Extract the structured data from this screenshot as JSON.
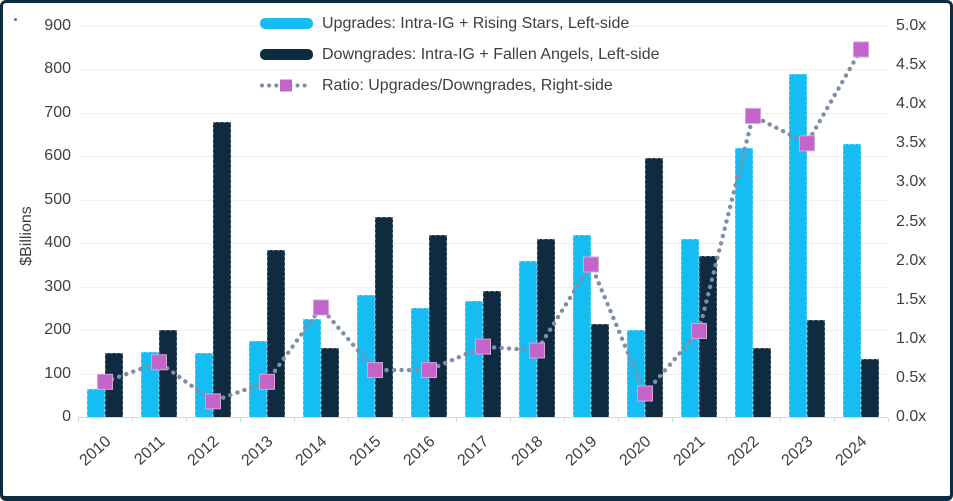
{
  "frame": {
    "border_color": "#0e2b40",
    "background": "#ffffff"
  },
  "legend": {
    "items": [
      {
        "label": "Upgrades: Intra-IG + Rising Stars, Left-side",
        "type": "bar",
        "color": "#16bdf2"
      },
      {
        "label": "Downgrades: Intra-IG + Fallen Angels, Left-side",
        "type": "bar",
        "color": "#0e2b40"
      },
      {
        "label": "Ratio: Upgrades/Downgrades, Right-side",
        "type": "dotted-line",
        "color": "#7e90a8",
        "marker_color": "#c364c9"
      }
    ]
  },
  "chart_data": {
    "type": "bar",
    "subtype": "grouped-bars-with-line-overlay",
    "categories": [
      "2010",
      "2011",
      "2012",
      "2013",
      "2014",
      "2015",
      "2016",
      "2017",
      "2018",
      "2019",
      "2020",
      "2021",
      "2022",
      "2023",
      "2024"
    ],
    "series": [
      {
        "name": "Upgrades: Intra-IG + Rising Stars",
        "axis": "left",
        "render": "bar",
        "color": "#16bdf2",
        "values": [
          65,
          150,
          148,
          175,
          225,
          280,
          250,
          267,
          360,
          420,
          200,
          410,
          620,
          790,
          628
        ]
      },
      {
        "name": "Downgrades: Intra-IG + Fallen Angels",
        "axis": "left",
        "render": "bar",
        "color": "#0e2b40",
        "values": [
          148,
          200,
          678,
          385,
          160,
          460,
          420,
          290,
          410,
          213,
          597,
          370,
          160,
          223,
          133
        ]
      },
      {
        "name": "Ratio: Upgrades/Downgrades",
        "axis": "right",
        "render": "dotted-line",
        "color": "#7e90a8",
        "marker": "square",
        "marker_color": "#c364c9",
        "values": [
          0.45,
          0.7,
          0.2,
          0.45,
          1.4,
          0.6,
          0.6,
          0.9,
          0.85,
          1.95,
          0.3,
          1.1,
          3.85,
          3.5,
          4.7
        ]
      }
    ],
    "left_axis": {
      "label": "$Billions",
      "range": [
        0,
        900
      ],
      "step": 100,
      "tick_labels": [
        "0",
        "100",
        "200",
        "300",
        "400",
        "500",
        "600",
        "700",
        "800",
        "900"
      ]
    },
    "right_axis": {
      "label": "",
      "range": [
        0,
        5
      ],
      "step": 0.5,
      "tick_labels": [
        "0.0x",
        "0.5x",
        "1.0x",
        "1.5x",
        "2.0x",
        "2.5x",
        "3.0x",
        "3.5x",
        "4.0x",
        "4.5x",
        "5.0x"
      ]
    },
    "grid": true,
    "legend_position": "top",
    "text_color": "#3f3f3f",
    "gridline_color": "#f0f0f0"
  }
}
